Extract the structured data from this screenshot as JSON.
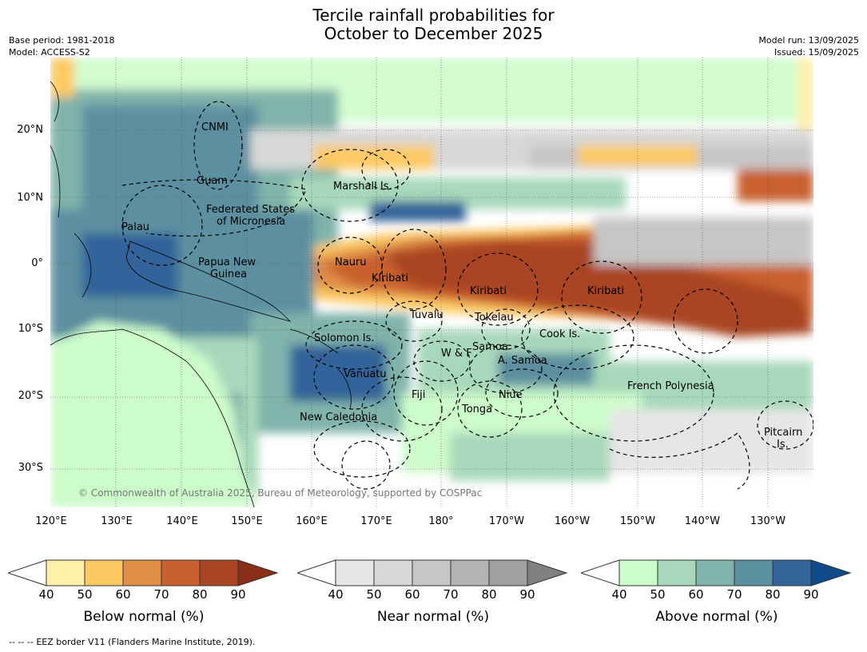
{
  "title": {
    "line1": "Tercile rainfall probabilities for",
    "line2": "October to December 2025"
  },
  "meta": {
    "base_period": "Base period: 1981-2018",
    "model": "Model: ACCESS-S2",
    "model_run": "Model run: 13/09/2025",
    "issued": "Issued: 15/09/2025"
  },
  "map": {
    "lat_ticks": [
      "20°N",
      "10°N",
      "0°",
      "10°S",
      "20°S",
      "30°S"
    ],
    "lon_ticks": [
      "120°E",
      "130°E",
      "140°E",
      "150°E",
      "160°E",
      "170°E",
      "180°",
      "170°W",
      "160°W",
      "150°W",
      "140°W",
      "130°W"
    ],
    "regions": [
      "CNMI",
      "Guam",
      "Marshall Is.",
      "Federated States",
      "of Micronesia",
      "Palau",
      "Papua New",
      "Guinea",
      "Nauru",
      "Kiribati",
      "Kiribati",
      "Kiribati",
      "Tuvalu",
      "Tokelau",
      "Cook Is.",
      "Solomon Is.",
      "Samoa",
      "W & F",
      "A. Samoa",
      "Vanuatu",
      "Fiji",
      "Niue",
      "French Polynesia",
      "Tonga",
      "New Caledonia",
      "Pitcairn",
      "Is."
    ],
    "copyright": "© Commonwealth of Australia 2025, Bureau of Meteorology, supported by COSPPac"
  },
  "colorbars": [
    {
      "title": "Below normal (%)",
      "ticks": [
        "40",
        "50",
        "60",
        "70",
        "80",
        "90"
      ],
      "colors": [
        "#fff0a8",
        "#fdc963",
        "#de8e46",
        "#c9602f",
        "#a94423",
        "#8a2e17"
      ]
    },
    {
      "title": "Near normal (%)",
      "ticks": [
        "40",
        "50",
        "60",
        "70",
        "80",
        "90"
      ],
      "colors": [
        "#e6e6e6",
        "#d7d7d7",
        "#c6c6c6",
        "#b3b3b3",
        "#a0a0a0",
        "#808080"
      ]
    },
    {
      "title": "Above normal (%)",
      "ticks": [
        "40",
        "50",
        "60",
        "70",
        "80",
        "90"
      ],
      "colors": [
        "#cdfccb",
        "#a8d8bb",
        "#80b3aa",
        "#5b90a0",
        "#33649a",
        "#0f4a8a"
      ]
    }
  ],
  "eez_note": "EEZ border V11 (Flanders Marine Institute, 2019).",
  "eez_dashes": "--  --  --"
}
